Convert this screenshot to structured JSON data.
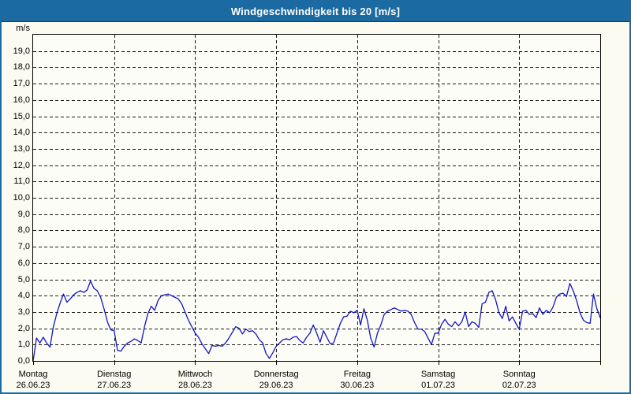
{
  "window": {
    "title": "Windgeschwindigkeit bis 20 [m/s]"
  },
  "colors": {
    "titlebar": "#1c6aa2",
    "titlebar_text": "#ffffff",
    "window_border": "#1c6aa2",
    "body_background": "#fbfbf1",
    "plot_background": "#fdfdf7",
    "plot_border": "#000000",
    "gridline": "#1a1a1a",
    "series_line": "#1414c8",
    "label_text": "#000000"
  },
  "chart_data": {
    "type": "line",
    "title": "Windgeschwindigkeit bis 20 [m/s]",
    "unit_label": "m/s",
    "ylabel": "",
    "xlabel": "",
    "ylim": [
      0,
      20
    ],
    "grid": "dashed, horizontal every 1.0 m/s, vertical at each day boundary",
    "legend": "none",
    "y_ticks": [
      {
        "value": 19,
        "label": "19,0"
      },
      {
        "value": 18,
        "label": "18,0"
      },
      {
        "value": 17,
        "label": "17,0"
      },
      {
        "value": 16,
        "label": "16,0"
      },
      {
        "value": 15,
        "label": "15,0"
      },
      {
        "value": 14,
        "label": "14,0"
      },
      {
        "value": 13,
        "label": "13,0"
      },
      {
        "value": 12,
        "label": "12,0"
      },
      {
        "value": 11,
        "label": "11,0"
      },
      {
        "value": 10,
        "label": "10,0"
      },
      {
        "value": 9,
        "label": "9,0"
      },
      {
        "value": 8,
        "label": "8,0"
      },
      {
        "value": 7,
        "label": "7,0"
      },
      {
        "value": 6,
        "label": "6,0"
      },
      {
        "value": 5,
        "label": "5,0"
      },
      {
        "value": 4,
        "label": "4,0"
      },
      {
        "value": 3,
        "label": "3,0"
      },
      {
        "value": 2,
        "label": "2,0"
      },
      {
        "value": 1,
        "label": "1,0"
      }
    ],
    "y_zero_label": "0,0",
    "x_days": [
      {
        "name": "Montag",
        "date": "26.06.23"
      },
      {
        "name": "Dienstag",
        "date": "27.06.23"
      },
      {
        "name": "Mittwoch",
        "date": "28.06.23"
      },
      {
        "name": "Donnerstag",
        "date": "29.06.23"
      },
      {
        "name": "Freitag",
        "date": "30.06.23"
      },
      {
        "name": "Samstag",
        "date": "01.07.23"
      },
      {
        "name": "Sonntag",
        "date": "02.07.23"
      }
    ],
    "series": [
      {
        "name": "Windgeschwindigkeit",
        "unit": "m/s",
        "points_per_day": 24,
        "values": [
          0.0,
          1.4,
          1.1,
          1.45,
          1.1,
          0.85,
          2.1,
          2.9,
          3.55,
          4.1,
          3.6,
          3.8,
          4.05,
          4.2,
          4.3,
          4.2,
          4.35,
          4.9,
          4.45,
          4.3,
          3.9,
          3.2,
          2.4,
          1.9,
          1.85,
          0.65,
          0.6,
          0.9,
          1.1,
          1.2,
          1.35,
          1.25,
          1.1,
          2.1,
          2.9,
          3.35,
          3.1,
          3.7,
          4.0,
          4.05,
          4.1,
          4.0,
          3.9,
          3.8,
          3.5,
          3.0,
          2.5,
          2.1,
          1.7,
          1.45,
          1.05,
          0.75,
          0.45,
          0.95,
          0.9,
          0.95,
          0.9,
          1.1,
          1.4,
          1.75,
          2.1,
          2.0,
          1.65,
          1.95,
          1.8,
          1.85,
          1.65,
          1.3,
          1.1,
          0.45,
          0.15,
          0.5,
          0.9,
          1.1,
          1.3,
          1.35,
          1.3,
          1.45,
          1.5,
          1.25,
          1.1,
          1.45,
          1.7,
          2.2,
          1.7,
          1.15,
          1.85,
          1.45,
          1.05,
          1.1,
          1.7,
          2.3,
          2.7,
          2.75,
          3.05,
          2.95,
          3.1,
          2.2,
          3.2,
          2.5,
          1.4,
          0.85,
          1.7,
          2.2,
          2.85,
          3.05,
          3.15,
          3.25,
          3.15,
          3.05,
          3.1,
          3.05,
          2.85,
          2.35,
          1.95,
          1.95,
          1.8,
          1.4,
          1.0,
          1.7,
          1.7,
          2.25,
          2.55,
          2.25,
          2.1,
          2.4,
          2.15,
          2.4,
          3.0,
          2.1,
          2.4,
          2.3,
          2.05,
          3.5,
          3.6,
          4.2,
          4.3,
          3.75,
          2.95,
          2.6,
          3.35,
          2.45,
          2.7,
          2.3,
          1.95,
          3.05,
          3.1,
          2.85,
          2.9,
          2.65,
          3.25,
          2.85,
          3.1,
          2.95,
          3.3,
          3.9,
          4.1,
          4.15,
          3.95,
          4.75,
          4.3,
          3.7,
          2.95,
          2.5,
          2.35,
          2.3,
          4.1,
          3.2,
          2.65
        ]
      }
    ]
  }
}
